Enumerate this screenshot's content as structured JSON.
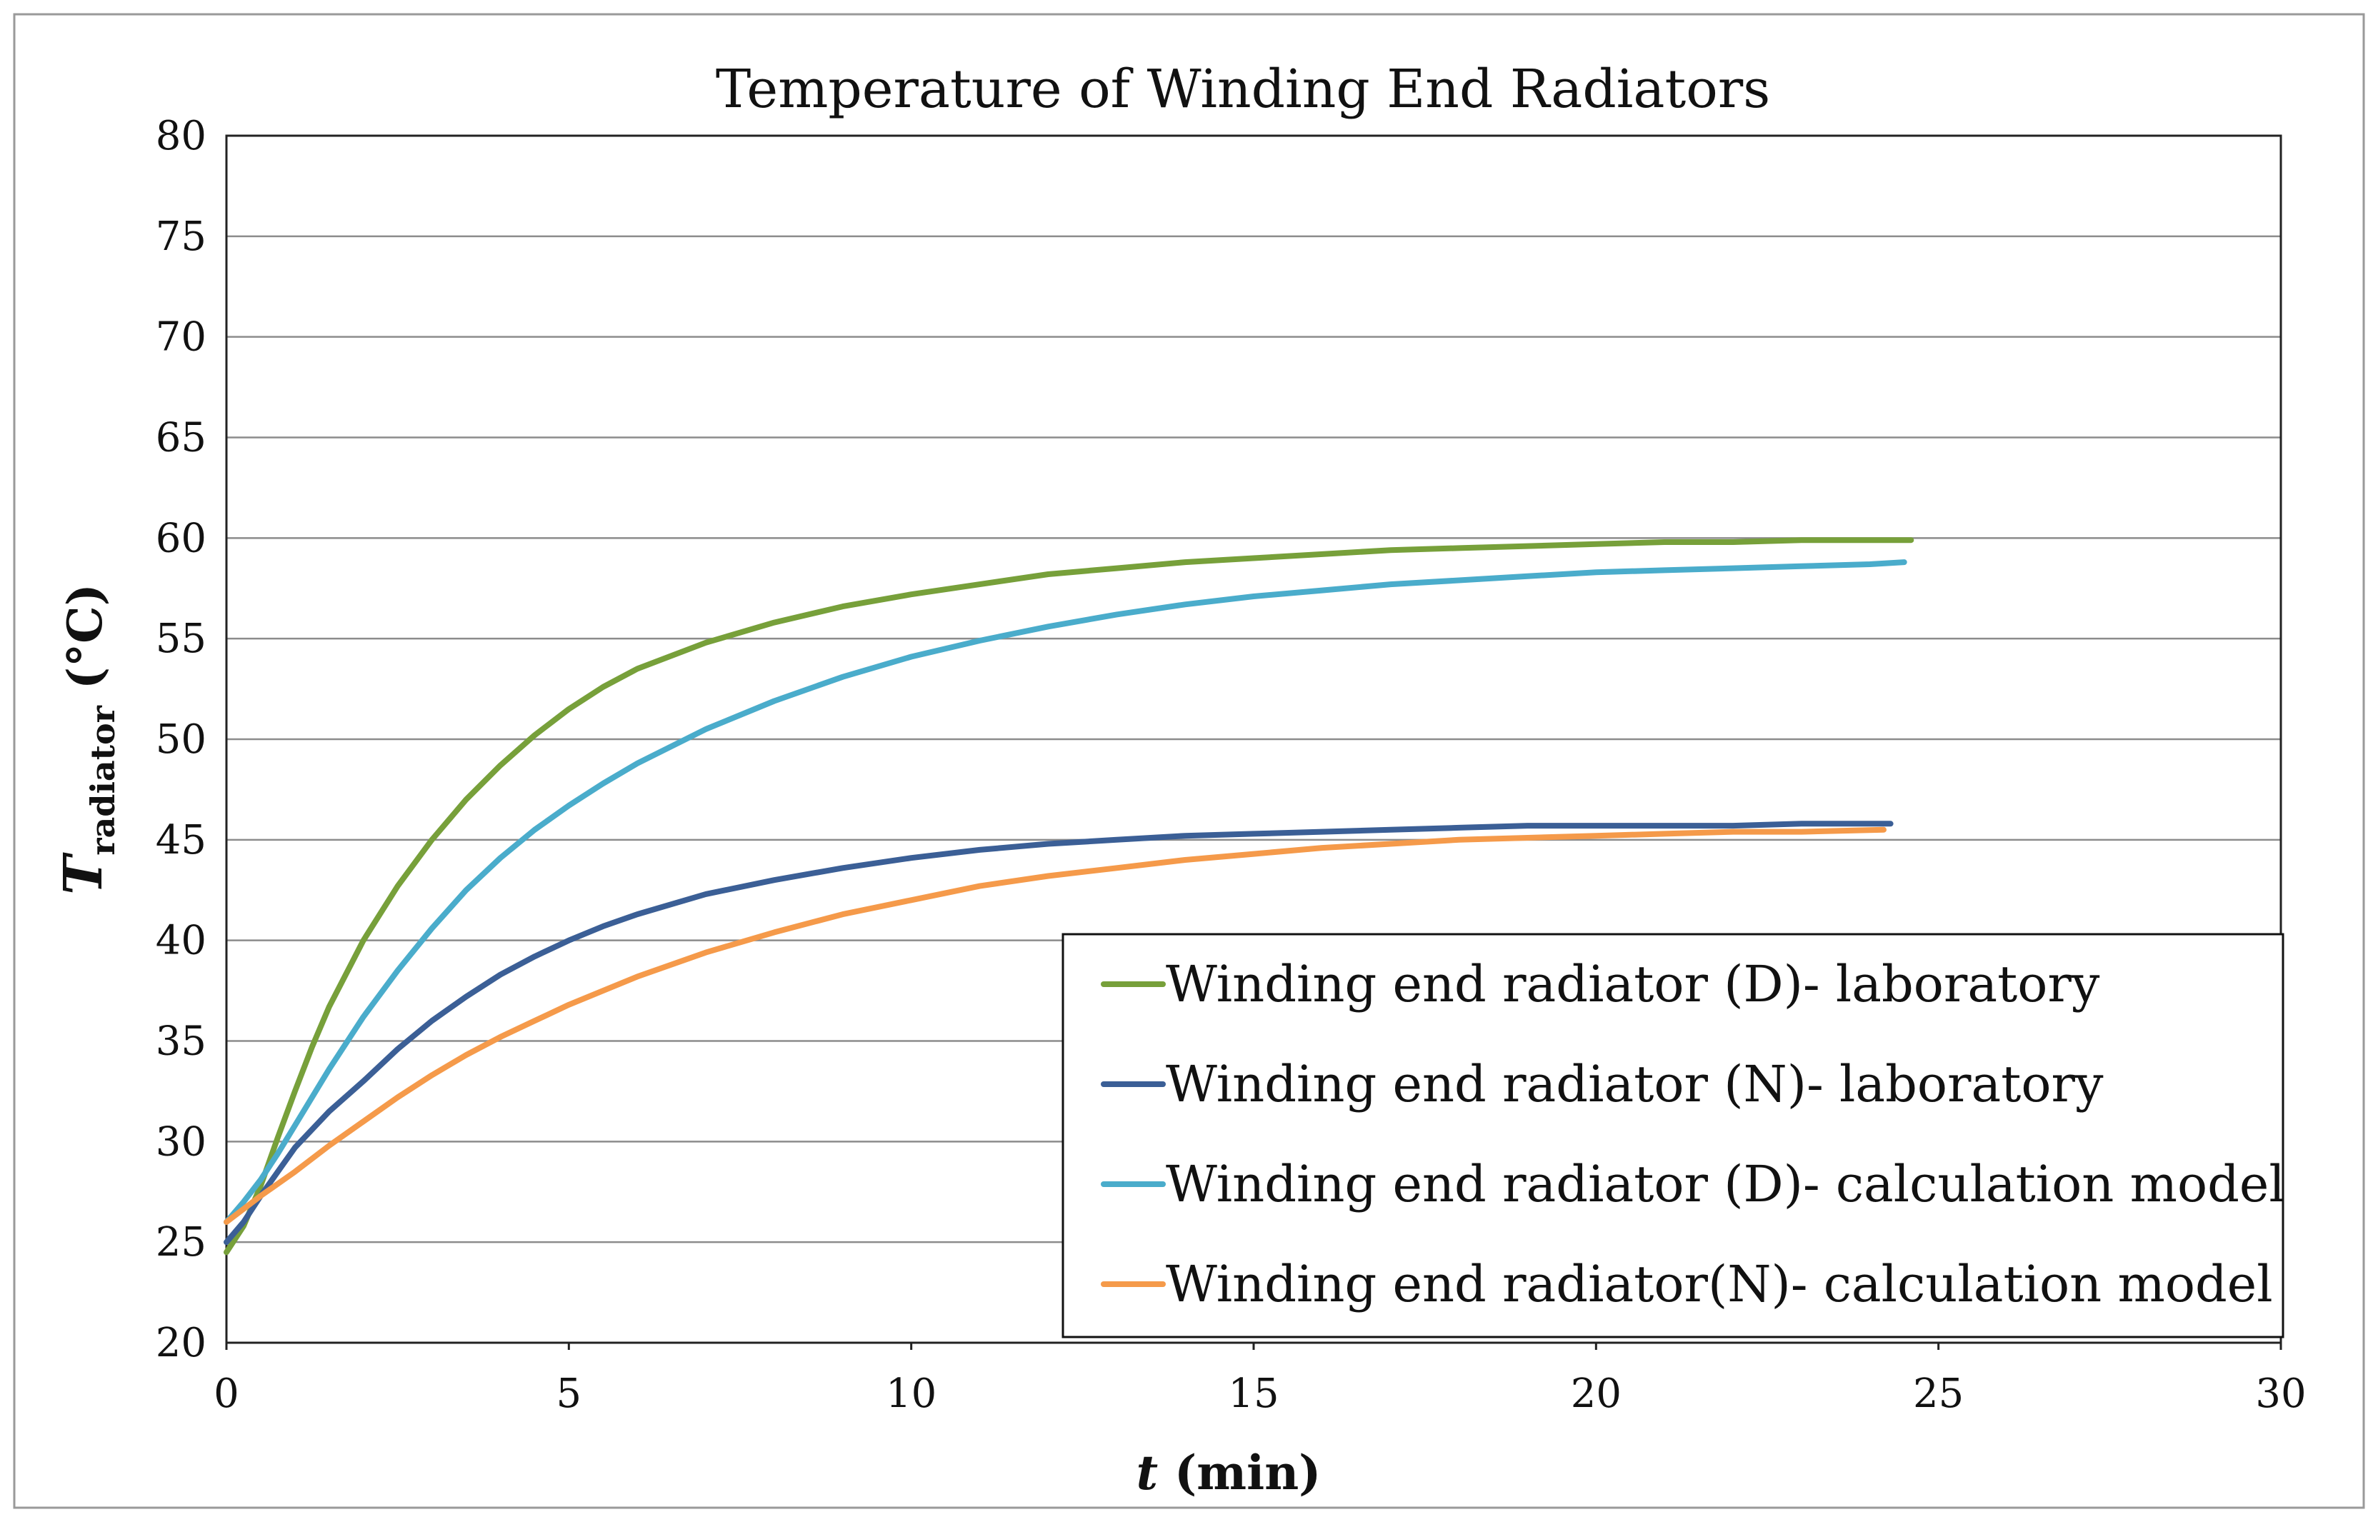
{
  "chart_data": {
    "type": "line",
    "title": "Temperature of Winding End Radiators",
    "xlabel_italic": "t",
    "xlabel_rest": " (min)",
    "ylabel_symbol": "T",
    "ylabel_subscript": "radiator",
    "ylabel_unit": " (°C)",
    "xlim": [
      0,
      30
    ],
    "ylim": [
      20,
      80
    ],
    "xticks": [
      0,
      5,
      10,
      15,
      20,
      25,
      30
    ],
    "yticks": [
      20,
      25,
      30,
      35,
      40,
      45,
      50,
      55,
      60,
      65,
      70,
      75,
      80
    ],
    "grid": "horizontal",
    "legend_position": "bottom-right",
    "series": [
      {
        "name": "Winding end radiator (D)- laboratory",
        "color": "#77a03a",
        "x": [
          0,
          0.25,
          0.5,
          0.75,
          1,
          1.25,
          1.5,
          2,
          2.5,
          3,
          3.5,
          4,
          4.5,
          5,
          5.5,
          6,
          7,
          8,
          9,
          10,
          11,
          12,
          13,
          14,
          15,
          16,
          17,
          18,
          19,
          20,
          21,
          22,
          23,
          24,
          24.6
        ],
        "y": [
          24.5,
          25.8,
          27.8,
          30.2,
          32.5,
          34.7,
          36.7,
          40.0,
          42.7,
          45.0,
          47.0,
          48.7,
          50.2,
          51.5,
          52.6,
          53.5,
          54.8,
          55.8,
          56.6,
          57.2,
          57.7,
          58.2,
          58.5,
          58.8,
          59.0,
          59.2,
          59.4,
          59.5,
          59.6,
          59.7,
          59.8,
          59.8,
          59.9,
          59.9,
          59.9
        ]
      },
      {
        "name": "Winding end radiator (N)- laboratory",
        "color": "#3b5f96",
        "x": [
          0,
          0.25,
          0.5,
          0.75,
          1,
          1.5,
          2,
          2.5,
          3,
          3.5,
          4,
          4.5,
          5,
          5.5,
          6,
          7,
          8,
          9,
          10,
          11,
          12,
          13,
          14,
          15,
          16,
          17,
          18,
          19,
          20,
          21,
          22,
          23,
          24,
          24.3
        ],
        "y": [
          25.0,
          26.0,
          27.3,
          28.5,
          29.7,
          31.5,
          33.0,
          34.6,
          36.0,
          37.2,
          38.3,
          39.2,
          40.0,
          40.7,
          41.3,
          42.3,
          43.0,
          43.6,
          44.1,
          44.5,
          44.8,
          45.0,
          45.2,
          45.3,
          45.4,
          45.5,
          45.6,
          45.7,
          45.7,
          45.7,
          45.7,
          45.8,
          45.8,
          45.8
        ]
      },
      {
        "name": "Winding end radiator (D)- calculation model",
        "color": "#4aaccb",
        "x": [
          0,
          0.25,
          0.5,
          0.75,
          1,
          1.5,
          2,
          2.5,
          3,
          3.5,
          4,
          4.5,
          5,
          5.5,
          6,
          7,
          8,
          9,
          10,
          11,
          12,
          13,
          14,
          15,
          16,
          17,
          18,
          19,
          20,
          21,
          22,
          23,
          24,
          24.5
        ],
        "y": [
          26.0,
          27.0,
          28.1,
          29.4,
          30.8,
          33.6,
          36.2,
          38.5,
          40.6,
          42.5,
          44.1,
          45.5,
          46.7,
          47.8,
          48.8,
          50.5,
          51.9,
          53.1,
          54.1,
          54.9,
          55.6,
          56.2,
          56.7,
          57.1,
          57.4,
          57.7,
          57.9,
          58.1,
          58.3,
          58.4,
          58.5,
          58.6,
          58.7,
          58.8
        ]
      },
      {
        "name": "Winding end radiator(N)- calculation model",
        "color": "#f59a4a",
        "x": [
          0,
          0.5,
          1,
          1.5,
          2,
          2.5,
          3,
          3.5,
          4,
          4.5,
          5,
          5.5,
          6,
          7,
          8,
          9,
          10,
          11,
          12,
          13,
          14,
          15,
          16,
          17,
          18,
          19,
          20,
          21,
          22,
          23,
          24.2
        ],
        "y": [
          26.0,
          27.3,
          28.5,
          29.8,
          31.0,
          32.2,
          33.3,
          34.3,
          35.2,
          36.0,
          36.8,
          37.5,
          38.2,
          39.4,
          40.4,
          41.3,
          42.0,
          42.7,
          43.2,
          43.6,
          44.0,
          44.3,
          44.6,
          44.8,
          45.0,
          45.1,
          45.2,
          45.3,
          45.4,
          45.4,
          45.5
        ]
      }
    ]
  }
}
